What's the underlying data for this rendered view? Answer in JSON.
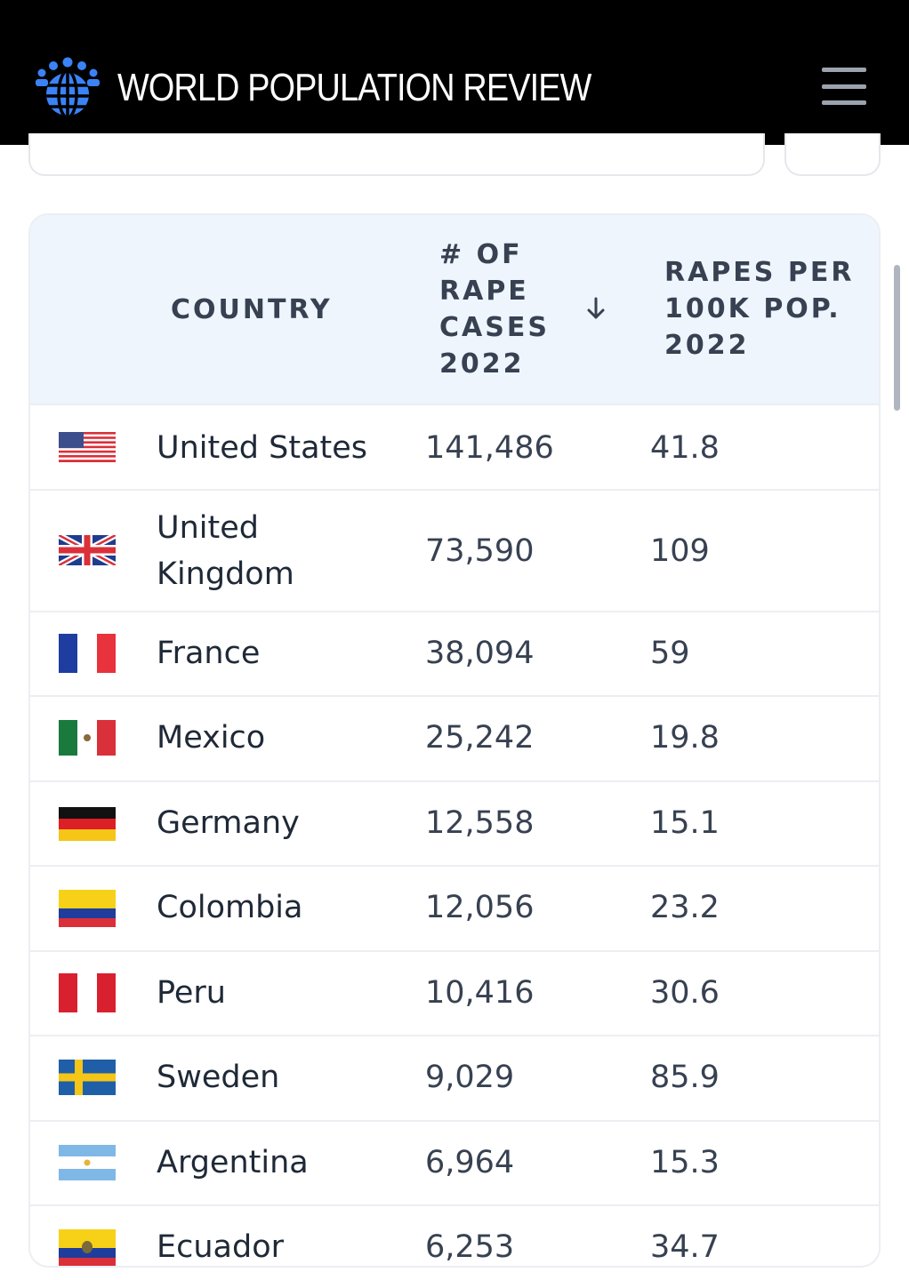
{
  "header": {
    "brand": "WORLD POPULATION REVIEW",
    "logo_icon": "globe-people-icon",
    "menu_icon": "hamburger-menu-icon"
  },
  "table": {
    "columns": {
      "country": "COUNTRY",
      "cases_line1": "# OF",
      "cases_line2": "RAPE",
      "cases_line3": "CASES",
      "cases_line4": "2022",
      "rate_line1": "RAPES PER",
      "rate_line2": "100K POP.",
      "rate_line3": "2022",
      "sort_icon": "arrow-down-icon"
    },
    "rows": [
      {
        "country": "United States",
        "cases": "141,486",
        "rate": "41.8",
        "flag": "us-flag-icon"
      },
      {
        "country": "United Kingdom",
        "cases": "73,590",
        "rate": "109",
        "flag": "uk-flag-icon"
      },
      {
        "country": "France",
        "cases": "38,094",
        "rate": "59",
        "flag": "france-flag-icon"
      },
      {
        "country": "Mexico",
        "cases": "25,242",
        "rate": "19.8",
        "flag": "mexico-flag-icon"
      },
      {
        "country": "Germany",
        "cases": "12,558",
        "rate": "15.1",
        "flag": "germany-flag-icon"
      },
      {
        "country": "Colombia",
        "cases": "12,056",
        "rate": "23.2",
        "flag": "colombia-flag-icon"
      },
      {
        "country": "Peru",
        "cases": "10,416",
        "rate": "30.6",
        "flag": "peru-flag-icon"
      },
      {
        "country": "Sweden",
        "cases": "9,029",
        "rate": "85.9",
        "flag": "sweden-flag-icon"
      },
      {
        "country": "Argentina",
        "cases": "6,964",
        "rate": "15.3",
        "flag": "argentina-flag-icon"
      },
      {
        "country": "Ecuador",
        "cases": "6,253",
        "rate": "34.7",
        "flag": "ecuador-flag-icon"
      }
    ]
  }
}
